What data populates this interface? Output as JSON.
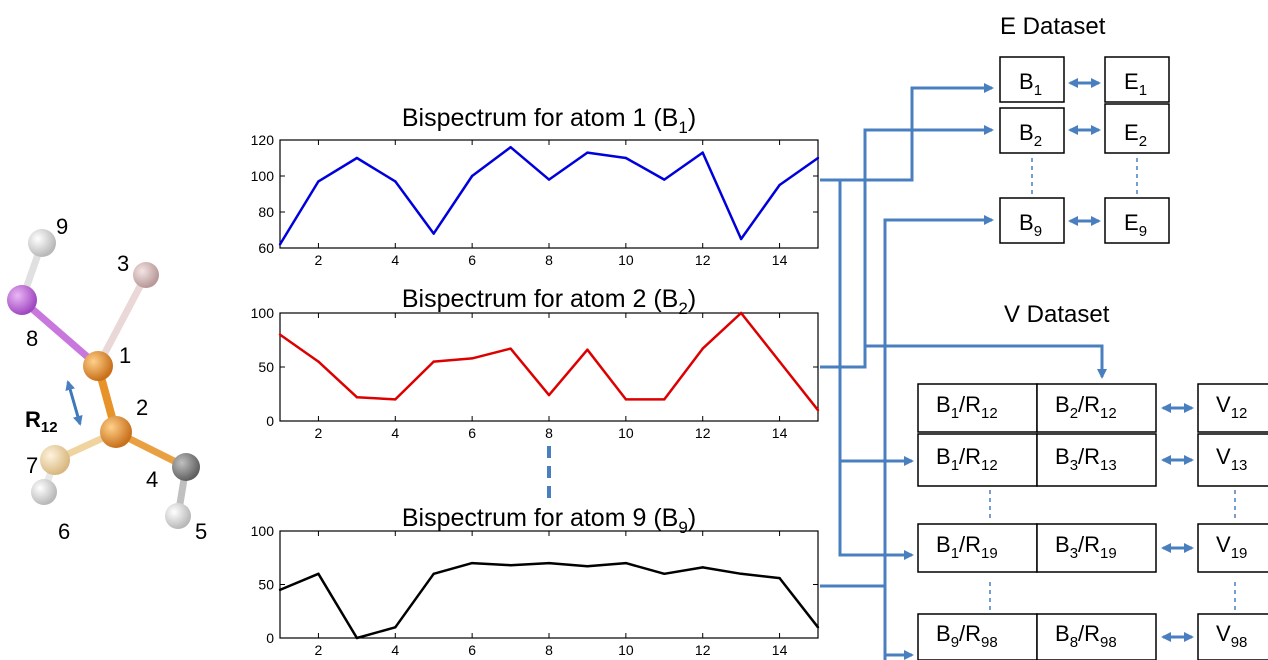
{
  "chart_data": [
    {
      "type": "line",
      "title": "Bispectrum for atom 1 (B",
      "title_sub": "1",
      "title_end": ")",
      "x": [
        1,
        2,
        3,
        4,
        5,
        6,
        7,
        8,
        9,
        10,
        11,
        12,
        13,
        14,
        15
      ],
      "values": [
        62,
        97,
        110,
        97,
        68,
        100,
        116,
        98,
        113,
        110,
        98,
        113,
        65,
        95,
        110
      ],
      "ylim": [
        60,
        120
      ],
      "xlim": [
        1,
        15
      ],
      "yticks": [
        "60",
        "80",
        "100",
        "120"
      ],
      "xticks": [
        "2",
        "4",
        "6",
        "8",
        "10",
        "12",
        "14"
      ],
      "color": "#0000dd"
    },
    {
      "type": "line",
      "title": "Bispectrum for atom 2 (B",
      "title_sub": "2",
      "title_end": ")",
      "x": [
        1,
        2,
        3,
        4,
        5,
        6,
        7,
        8,
        9,
        10,
        11,
        12,
        13,
        14,
        15
      ],
      "values": [
        80,
        55,
        22,
        20,
        55,
        58,
        67,
        24,
        66,
        20,
        20,
        67,
        100,
        55,
        10
      ],
      "ylim": [
        0,
        100
      ],
      "xlim": [
        1,
        15
      ],
      "yticks": [
        "0",
        "50",
        "100"
      ],
      "xticks": [
        "2",
        "4",
        "6",
        "8",
        "10",
        "12",
        "14"
      ],
      "color": "#dd0000"
    },
    {
      "type": "line",
      "title": "Bispectrum for atom 9 (B",
      "title_sub": "9",
      "title_end": ")",
      "x": [
        1,
        2,
        3,
        4,
        5,
        6,
        7,
        8,
        9,
        10,
        11,
        12,
        13,
        14,
        15
      ],
      "values": [
        45,
        60,
        0,
        10,
        60,
        70,
        68,
        70,
        67,
        70,
        60,
        66,
        60,
        56,
        10
      ],
      "ylim": [
        0,
        100
      ],
      "xlim": [
        1,
        15
      ],
      "yticks": [
        "0",
        "50",
        "100"
      ],
      "xticks": [
        "2",
        "4",
        "6",
        "8",
        "10",
        "12",
        "14"
      ],
      "color": "#000000"
    }
  ],
  "molecule": {
    "atoms": [
      "1",
      "2",
      "3",
      "4",
      "5",
      "6",
      "7",
      "8",
      "9"
    ],
    "bond_label": "R",
    "bond_label_sub": "12",
    "colors": {
      "carbon": "#e8922a",
      "hydrogen": "#e6e6e6",
      "pink": "#dcc0c0",
      "violet": "#c86ee0",
      "cream": "#f5ddb0",
      "grey": "#808080",
      "arrow": "#3d78b8"
    }
  },
  "e_dataset": {
    "title": "E Dataset",
    "rows": [
      {
        "b": "B",
        "b_sub": "1",
        "e": "E",
        "e_sub": "1"
      },
      {
        "b": "B",
        "b_sub": "2",
        "e": "E",
        "e_sub": "2"
      },
      {
        "b": "B",
        "b_sub": "9",
        "e": "E",
        "e_sub": "9"
      }
    ]
  },
  "v_dataset": {
    "title": "V Dataset",
    "rows": [
      {
        "a": "B",
        "a_sub": "1",
        "a_r": "/R",
        "a_r_sub": "12",
        "b": "B",
        "b_sub": "2",
        "b_r": "/R",
        "b_r_sub": "12",
        "v": "V",
        "v_sub": "12"
      },
      {
        "a": "B",
        "a_sub": "1",
        "a_r": "/R",
        "a_r_sub": "12",
        "b": "B",
        "b_sub": "3",
        "b_r": "/R",
        "b_r_sub": "13",
        "v": "V",
        "v_sub": "13"
      },
      {
        "a": "B",
        "a_sub": "1",
        "a_r": "/R",
        "a_r_sub": "19",
        "b": "B",
        "b_sub": "3",
        "b_r": "/R",
        "b_r_sub": "19",
        "v": "V",
        "v_sub": "19"
      },
      {
        "a": "B",
        "a_sub": "9",
        "a_r": "/R",
        "a_r_sub": "98",
        "b": "B",
        "b_sub": "8",
        "b_r": "/R",
        "b_r_sub": "98",
        "v": "V",
        "v_sub": "98"
      }
    ]
  },
  "colors": {
    "arrow": "#4a7fbf",
    "dash": "#4a7fbf"
  }
}
